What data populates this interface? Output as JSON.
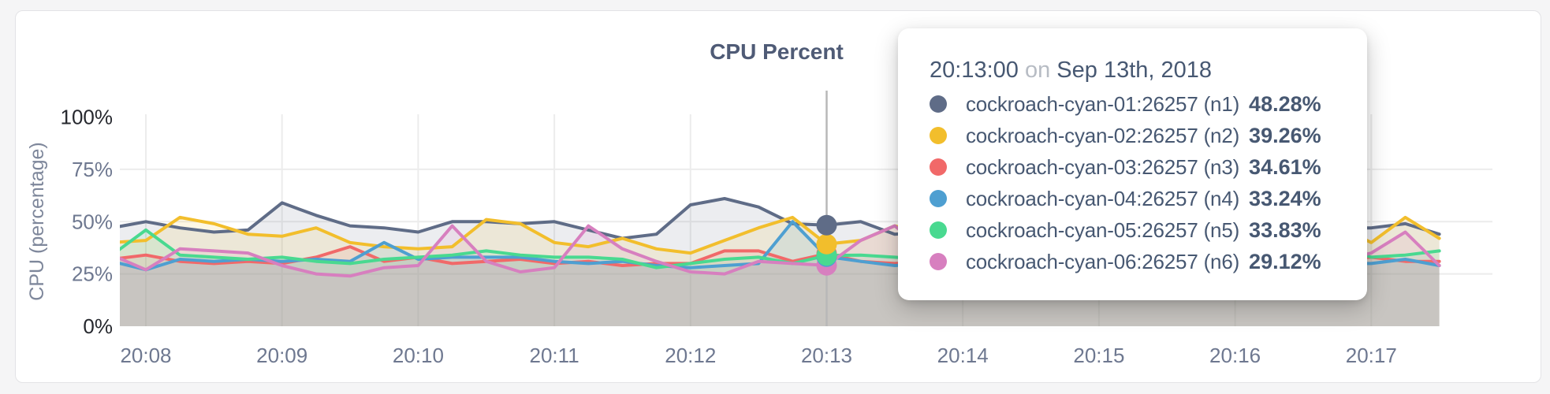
{
  "page": {
    "background": "#f5f5f6",
    "card_background": "#ffffff",
    "card_border": "#e3e3e6"
  },
  "chart": {
    "title_color": "#4f5b76",
    "axis_text_color": "#6e7890",
    "axis_text_strong_color": "#26282e",
    "axis_label_color": "#7e879b",
    "grid_color": "#ececec",
    "guideline_color": "#b8b8b8",
    "fill_opacity": 0.12
  },
  "tooltip": {
    "time": "20:13:00",
    "preposition": "on",
    "date": "Sep 13th, 2018",
    "rows": [
      {
        "label": "cockroach-cyan-01:26257 (n1)",
        "value": "48.28%",
        "color": "#5f6c87"
      },
      {
        "label": "cockroach-cyan-02:26257 (n2)",
        "value": "39.26%",
        "color": "#f2be2c"
      },
      {
        "label": "cockroach-cyan-03:26257 (n3)",
        "value": "34.61%",
        "color": "#f16969"
      },
      {
        "label": "cockroach-cyan-04:26257 (n4)",
        "value": "33.24%",
        "color": "#4e9fd1"
      },
      {
        "label": "cockroach-cyan-05:26257 (n5)",
        "value": "33.83%",
        "color": "#49d990"
      },
      {
        "label": "cockroach-cyan-06:26257 (n6)",
        "value": "29.12%",
        "color": "#d77fbf"
      }
    ]
  },
  "chart_data": {
    "type": "line",
    "title": "CPU Percent",
    "xlabel": "",
    "ylabel": "CPU (percentage)",
    "ylim": [
      0,
      100
    ],
    "grid": true,
    "legend_position": "none",
    "y_ticks": [
      {
        "label": "100%",
        "value": 100,
        "strong": true,
        "grid": false
      },
      {
        "label": "75%",
        "value": 75,
        "strong": false,
        "grid": true
      },
      {
        "label": "50%",
        "value": 50,
        "strong": false,
        "grid": true
      },
      {
        "label": "25%",
        "value": 25,
        "strong": false,
        "grid": true
      },
      {
        "label": "0%",
        "value": 0,
        "strong": true,
        "grid": false
      }
    ],
    "x_ticks": [
      {
        "label": "20:08",
        "minute": 0
      },
      {
        "label": "20:09",
        "minute": 1
      },
      {
        "label": "20:10",
        "minute": 2
      },
      {
        "label": "20:11",
        "minute": 3
      },
      {
        "label": "20:12",
        "minute": 4
      },
      {
        "label": "20:13",
        "minute": 5
      },
      {
        "label": "20:14",
        "minute": 6
      },
      {
        "label": "20:15",
        "minute": 7
      },
      {
        "label": "20:16",
        "minute": 8
      },
      {
        "label": "20:17",
        "minute": 9
      }
    ],
    "x_start_offset_minutes": -0.5,
    "x_step_minutes": 0.25,
    "hover": {
      "time": "20:13:00",
      "date": "Sep 13th, 2018",
      "minute": 5,
      "values": [
        48.28,
        39.26,
        34.61,
        33.24,
        33.83,
        29.12
      ],
      "dot_draw_order": [
        5,
        2,
        3,
        4,
        1,
        0
      ]
    },
    "series": [
      {
        "name": "cockroach-cyan-01:26257 (n1)",
        "short": "n1",
        "color": "#5f6c87",
        "values": [
          46,
          47,
          50,
          47,
          45,
          46,
          59,
          53,
          48,
          47,
          45,
          50,
          50,
          49,
          50,
          46,
          42,
          44,
          58,
          61,
          57,
          49,
          48.28,
          50,
          44,
          45,
          46,
          47,
          45,
          46,
          47,
          46,
          45,
          46,
          47,
          46,
          47,
          47,
          47,
          49,
          44
        ]
      },
      {
        "name": "cockroach-cyan-02:26257 (n2)",
        "short": "n2",
        "color": "#f2be2c",
        "values": [
          40,
          40,
          41,
          52,
          49,
          44,
          43,
          47,
          40,
          38,
          37,
          38,
          51,
          49,
          40,
          38,
          42,
          37,
          35,
          41,
          47,
          52,
          39.26,
          41,
          48,
          43,
          40,
          39,
          40,
          41,
          40,
          39,
          40,
          41,
          38,
          41,
          44,
          48,
          40,
          52,
          42
        ]
      },
      {
        "name": "cockroach-cyan-03:26257 (n3)",
        "short": "n3",
        "color": "#f16969",
        "values": [
          33,
          32,
          34,
          31,
          30,
          31,
          30,
          33,
          38,
          31,
          33,
          30,
          31,
          32,
          30,
          31,
          29,
          30,
          30,
          36,
          36,
          31,
          34.61,
          31,
          30,
          31,
          30,
          31,
          30,
          31,
          30,
          31,
          30,
          31,
          32,
          31,
          30,
          32,
          33,
          31,
          31
        ]
      },
      {
        "name": "cockroach-cyan-04:26257 (n4)",
        "short": "n4",
        "color": "#4e9fd1",
        "values": [
          32,
          31,
          27,
          32,
          31,
          32,
          31,
          32,
          31,
          40,
          32,
          33,
          33,
          33,
          31,
          30,
          31,
          29,
          28,
          29,
          30,
          50,
          33.24,
          31,
          29,
          30,
          31,
          30,
          31,
          30,
          31,
          30,
          31,
          30,
          31,
          32,
          31,
          30,
          30,
          32,
          29
        ]
      },
      {
        "name": "cockroach-cyan-05:26257 (n5)",
        "short": "n5",
        "color": "#49d990",
        "values": [
          33,
          34,
          46,
          34,
          33,
          32,
          33,
          31,
          30,
          32,
          33,
          34,
          36,
          34,
          33,
          33,
          32,
          28,
          30,
          32,
          33,
          30,
          33.83,
          34,
          33,
          32,
          33,
          34,
          33,
          32,
          33,
          34,
          33,
          34,
          35,
          42,
          40,
          38,
          33,
          34,
          36
        ]
      },
      {
        "name": "cockroach-cyan-06:26257 (n6)",
        "short": "n6",
        "color": "#d77fbf",
        "values": [
          40,
          34,
          27,
          37,
          36,
          35,
          29,
          25,
          24,
          28,
          29,
          48,
          31,
          26,
          28,
          48,
          37,
          31,
          26,
          25,
          31,
          30,
          29.12,
          41,
          48,
          35,
          30,
          28,
          29,
          30,
          29,
          28,
          29,
          30,
          29,
          28,
          30,
          31,
          35,
          45,
          29
        ]
      }
    ]
  }
}
